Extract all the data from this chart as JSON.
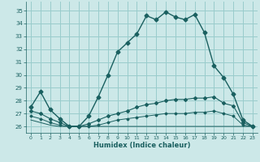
{
  "xlabel": "Humidex (Indice chaleur)",
  "bg_color": "#cce8e8",
  "grid_color": "#99cccc",
  "line_color": "#1a6060",
  "xlim": [
    -0.5,
    23.5
  ],
  "ylim": [
    25.5,
    35.7
  ],
  "xticks": [
    0,
    1,
    2,
    3,
    4,
    5,
    6,
    7,
    8,
    9,
    10,
    11,
    12,
    13,
    14,
    15,
    16,
    17,
    18,
    19,
    20,
    21,
    22,
    23
  ],
  "yticks": [
    26,
    27,
    28,
    29,
    30,
    31,
    32,
    33,
    34,
    35
  ],
  "line1_x": [
    0,
    1,
    2,
    3,
    4,
    5,
    6,
    7,
    8,
    9,
    10,
    11,
    12,
    13,
    14,
    15,
    16,
    17,
    18,
    19,
    20,
    21,
    22,
    23
  ],
  "line1_y": [
    27.5,
    28.7,
    27.3,
    26.6,
    26.0,
    26.0,
    26.8,
    28.3,
    30.0,
    31.8,
    32.5,
    33.2,
    34.6,
    34.3,
    34.9,
    34.5,
    34.3,
    34.7,
    33.3,
    30.7,
    29.8,
    28.5,
    26.5,
    26.0
  ],
  "line2_x": [
    0,
    1,
    2,
    3,
    4,
    5,
    6,
    7,
    8,
    9,
    10,
    11,
    12,
    13,
    14,
    15,
    16,
    17,
    18,
    19,
    20,
    21,
    22,
    23
  ],
  "line2_y": [
    27.2,
    27.0,
    26.6,
    26.3,
    26.0,
    26.0,
    26.2,
    26.5,
    26.8,
    27.0,
    27.2,
    27.5,
    27.7,
    27.8,
    28.0,
    28.1,
    28.1,
    28.2,
    28.2,
    28.3,
    27.8,
    27.6,
    26.3,
    26.0
  ],
  "line3_x": [
    0,
    1,
    2,
    3,
    4,
    5,
    6,
    7,
    8,
    9,
    10,
    11,
    12,
    13,
    14,
    15,
    16,
    17,
    18,
    19,
    20,
    21,
    22,
    23
  ],
  "line3_y": [
    26.8,
    26.6,
    26.3,
    26.1,
    26.0,
    26.0,
    26.0,
    26.1,
    26.3,
    26.5,
    26.6,
    26.7,
    26.8,
    26.9,
    27.0,
    27.0,
    27.0,
    27.1,
    27.1,
    27.2,
    27.0,
    26.8,
    26.1,
    26.0
  ],
  "line4_x": [
    0,
    1,
    2,
    3,
    4,
    5,
    6,
    7,
    8,
    9,
    10,
    11,
    12,
    13,
    14,
    15,
    16,
    17,
    18,
    19,
    20,
    21,
    22,
    23
  ],
  "line4_y": [
    26.5,
    26.3,
    26.1,
    26.0,
    26.0,
    26.0,
    26.0,
    26.0,
    26.0,
    26.0,
    26.0,
    26.0,
    26.0,
    26.0,
    26.0,
    26.0,
    26.0,
    26.0,
    26.0,
    26.0,
    26.0,
    26.0,
    26.0,
    26.0
  ]
}
